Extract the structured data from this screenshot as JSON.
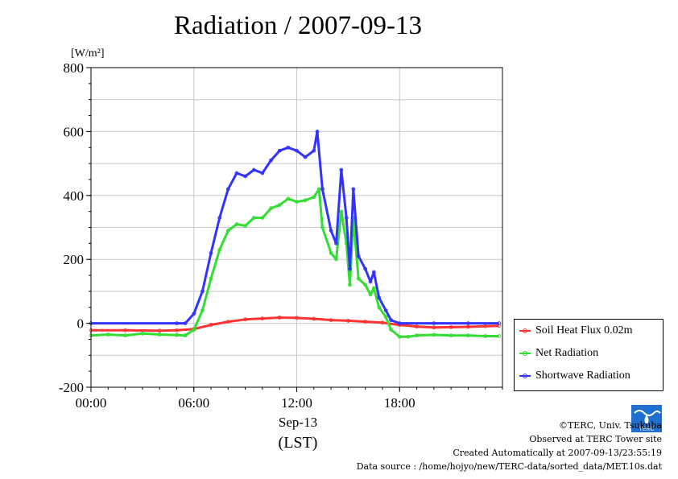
{
  "title": "Radiation / 2007-09-13",
  "chart_data": {
    "type": "line",
    "ylabel": "[W/m²]",
    "ylim": [
      -200,
      800
    ],
    "yticks": [
      -200,
      0,
      200,
      400,
      600,
      800
    ],
    "xlim": [
      0,
      24
    ],
    "xticks": [
      "00:00",
      "06:00",
      "12:00",
      "18:00"
    ],
    "xlabel_date": "Sep-13",
    "xlabel_tz": "(LST)",
    "grid": true,
    "legend_position": "bottom-right outside",
    "x_unit": "hour (LST)",
    "series": [
      {
        "name": "Soil Heat Flux 0.02m",
        "color": "#ff3333",
        "points": [
          [
            0,
            -22
          ],
          [
            2,
            -22
          ],
          [
            4,
            -23
          ],
          [
            5,
            -22
          ],
          [
            6,
            -18
          ],
          [
            7,
            -5
          ],
          [
            8,
            5
          ],
          [
            9,
            12
          ],
          [
            10,
            15
          ],
          [
            11,
            18
          ],
          [
            12,
            17
          ],
          [
            13,
            14
          ],
          [
            14,
            10
          ],
          [
            15,
            8
          ],
          [
            16,
            5
          ],
          [
            17,
            2
          ],
          [
            18,
            -5
          ],
          [
            19,
            -10
          ],
          [
            20,
            -13
          ],
          [
            21,
            -12
          ],
          [
            22,
            -11
          ],
          [
            23,
            -9
          ],
          [
            23.8,
            -8
          ]
        ]
      },
      {
        "name": "Net Radiation",
        "color": "#33dd33",
        "points": [
          [
            0,
            -38
          ],
          [
            1,
            -35
          ],
          [
            2,
            -38
          ],
          [
            3,
            -32
          ],
          [
            4,
            -35
          ],
          [
            5,
            -37
          ],
          [
            5.5,
            -38
          ],
          [
            6,
            -20
          ],
          [
            6.5,
            40
          ],
          [
            7,
            140
          ],
          [
            7.5,
            230
          ],
          [
            8,
            290
          ],
          [
            8.5,
            310
          ],
          [
            9,
            305
          ],
          [
            9.5,
            330
          ],
          [
            10,
            330
          ],
          [
            10.5,
            360
          ],
          [
            11,
            370
          ],
          [
            11.5,
            390
          ],
          [
            12,
            380
          ],
          [
            12.5,
            385
          ],
          [
            13,
            395
          ],
          [
            13.3,
            420
          ],
          [
            13.5,
            300
          ],
          [
            14,
            220
          ],
          [
            14.3,
            200
          ],
          [
            14.6,
            350
          ],
          [
            14.9,
            250
          ],
          [
            15.1,
            120
          ],
          [
            15.3,
            330
          ],
          [
            15.6,
            140
          ],
          [
            16,
            120
          ],
          [
            16.3,
            90
          ],
          [
            16.5,
            110
          ],
          [
            16.8,
            50
          ],
          [
            17.2,
            20
          ],
          [
            17.5,
            -20
          ],
          [
            18,
            -42
          ],
          [
            18.5,
            -42
          ],
          [
            19,
            -38
          ],
          [
            20,
            -36
          ],
          [
            21,
            -38
          ],
          [
            22,
            -38
          ],
          [
            23,
            -40
          ],
          [
            23.8,
            -40
          ]
        ]
      },
      {
        "name": "Shortwave Radiation",
        "color": "#3333ff",
        "points": [
          [
            0,
            0
          ],
          [
            5,
            0
          ],
          [
            5.5,
            0
          ],
          [
            6,
            30
          ],
          [
            6.5,
            100
          ],
          [
            7,
            220
          ],
          [
            7.5,
            330
          ],
          [
            8,
            420
          ],
          [
            8.5,
            470
          ],
          [
            9,
            460
          ],
          [
            9.5,
            480
          ],
          [
            10,
            470
          ],
          [
            10.5,
            510
          ],
          [
            11,
            540
          ],
          [
            11.5,
            550
          ],
          [
            12,
            540
          ],
          [
            12.5,
            520
          ],
          [
            13,
            540
          ],
          [
            13.2,
            600
          ],
          [
            13.5,
            420
          ],
          [
            14,
            290
          ],
          [
            14.3,
            250
          ],
          [
            14.6,
            480
          ],
          [
            14.9,
            330
          ],
          [
            15.1,
            170
          ],
          [
            15.3,
            420
          ],
          [
            15.6,
            210
          ],
          [
            16,
            170
          ],
          [
            16.3,
            130
          ],
          [
            16.5,
            160
          ],
          [
            16.8,
            80
          ],
          [
            17.2,
            40
          ],
          [
            17.5,
            10
          ],
          [
            18,
            0
          ],
          [
            20,
            0
          ],
          [
            22,
            0
          ],
          [
            23.8,
            0
          ]
        ]
      }
    ]
  },
  "footer": {
    "copyright": "©TERC, Univ. Tsukuba",
    "site": "Observed at TERC Tower site",
    "created": "Created Automatically at 2007-09-13/23:55:19",
    "source": "Data source : /home/hojyo/new/TERC-data/sorted_data/MET.10s.dat"
  },
  "logo_text": "TERC"
}
